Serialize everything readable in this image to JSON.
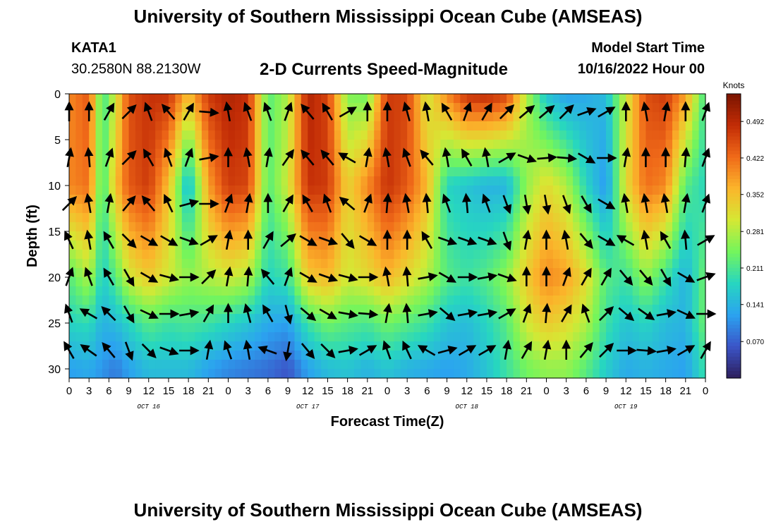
{
  "header": {
    "title": "University of Southern Mississippi Ocean Cube (AMSEAS)",
    "station": "KATA1",
    "coords": "30.2580N  88.2130W",
    "subtitle": "2-D Currents Speed-Magnitude",
    "start_label": "Model Start Time",
    "start_value": "10/16/2022 Hour 00"
  },
  "footer": {
    "title": "University of Southern Mississippi Ocean Cube (AMSEAS)"
  },
  "chart_data": {
    "type": "heatmap",
    "title": "2-D Currents Speed-Magnitude",
    "xlabel": "Forecast Time(Z)",
    "ylabel": "Depth (ft)",
    "x_ticks": [
      "0",
      "3",
      "6",
      "9",
      "12",
      "15",
      "18",
      "21",
      "0",
      "3",
      "6",
      "9",
      "12",
      "15",
      "18",
      "21",
      "0",
      "3",
      "6",
      "9",
      "12",
      "15",
      "18",
      "21",
      "0",
      "3",
      "6",
      "9",
      "12",
      "15",
      "18",
      "21",
      "0"
    ],
    "date_labels": [
      "OCT 16",
      "OCT 17",
      "OCT 18",
      "OCT 19"
    ],
    "xlim_hours": [
      0,
      96
    ],
    "ylim_ft": [
      0,
      31
    ],
    "y_ticks": [
      0,
      5,
      10,
      15,
      20,
      25,
      30
    ],
    "colorbar": {
      "label": "Knots",
      "ticks": [
        "0.492",
        "0.422",
        "0.352",
        "0.281",
        "0.211",
        "0.141",
        "0.070"
      ],
      "tick_values": [
        0.492,
        0.422,
        0.352,
        0.281,
        0.211,
        0.141,
        0.07
      ],
      "range": [
        0.0,
        0.545
      ]
    },
    "colors": [
      "#2d1e5c",
      "#3b55c8",
      "#2ba3f0",
      "#27d6c0",
      "#74f55c",
      "#d5e834",
      "#fbb52b",
      "#f06a19",
      "#c22c06",
      "#7a1500"
    ],
    "speed_profiles": [
      {
        "hour": 0,
        "d0": 0.4,
        "d10": 0.4,
        "d20": 0.22,
        "d25": 0.18,
        "d30": 0.12
      },
      {
        "hour": 3,
        "d0": 0.44,
        "d10": 0.42,
        "d20": 0.28,
        "d25": 0.19,
        "d30": 0.13
      },
      {
        "hour": 5,
        "d0": 0.2,
        "d10": 0.2,
        "d20": 0.17,
        "d25": 0.14,
        "d30": 0.11
      },
      {
        "hour": 7,
        "d0": 0.3,
        "d10": 0.35,
        "d20": 0.22,
        "d25": 0.15,
        "d30": 0.09
      },
      {
        "hour": 9,
        "d0": 0.45,
        "d10": 0.44,
        "d20": 0.3,
        "d25": 0.18,
        "d30": 0.12
      },
      {
        "hour": 12,
        "d0": 0.48,
        "d10": 0.47,
        "d20": 0.34,
        "d25": 0.22,
        "d30": 0.15
      },
      {
        "hour": 15,
        "d0": 0.48,
        "d10": 0.35,
        "d20": 0.3,
        "d25": 0.2,
        "d30": 0.15
      },
      {
        "hour": 18,
        "d0": 0.35,
        "d10": 0.14,
        "d20": 0.26,
        "d25": 0.21,
        "d30": 0.15
      },
      {
        "hour": 21,
        "d0": 0.47,
        "d10": 0.38,
        "d20": 0.28,
        "d25": 0.2,
        "d30": 0.12
      },
      {
        "hour": 24,
        "d0": 0.5,
        "d10": 0.47,
        "d20": 0.3,
        "d25": 0.18,
        "d30": 0.1
      },
      {
        "hour": 27,
        "d0": 0.48,
        "d10": 0.46,
        "d20": 0.28,
        "d25": 0.16,
        "d30": 0.09
      },
      {
        "hour": 30,
        "d0": 0.22,
        "d10": 0.22,
        "d20": 0.18,
        "d25": 0.13,
        "d30": 0.08
      },
      {
        "hour": 33,
        "d0": 0.28,
        "d10": 0.3,
        "d20": 0.2,
        "d25": 0.12,
        "d30": 0.06
      },
      {
        "hour": 36,
        "d0": 0.5,
        "d10": 0.48,
        "d20": 0.34,
        "d25": 0.2,
        "d30": 0.12
      },
      {
        "hour": 39,
        "d0": 0.46,
        "d10": 0.47,
        "d20": 0.36,
        "d25": 0.24,
        "d30": 0.15
      },
      {
        "hour": 42,
        "d0": 0.25,
        "d10": 0.33,
        "d20": 0.3,
        "d25": 0.22,
        "d30": 0.16
      },
      {
        "hour": 45,
        "d0": 0.24,
        "d10": 0.4,
        "d20": 0.32,
        "d25": 0.21,
        "d30": 0.14
      },
      {
        "hour": 48,
        "d0": 0.47,
        "d10": 0.48,
        "d20": 0.36,
        "d25": 0.24,
        "d30": 0.16
      },
      {
        "hour": 51,
        "d0": 0.46,
        "d10": 0.44,
        "d20": 0.32,
        "d25": 0.22,
        "d30": 0.14
      },
      {
        "hour": 54,
        "d0": 0.3,
        "d10": 0.36,
        "d20": 0.28,
        "d25": 0.2,
        "d30": 0.13
      },
      {
        "hour": 57,
        "d0": 0.4,
        "d10": 0.18,
        "d20": 0.22,
        "d25": 0.16,
        "d30": 0.12
      },
      {
        "hour": 60,
        "d0": 0.48,
        "d10": 0.16,
        "d20": 0.2,
        "d25": 0.15,
        "d30": 0.13
      },
      {
        "hour": 63,
        "d0": 0.49,
        "d10": 0.14,
        "d20": 0.22,
        "d25": 0.18,
        "d30": 0.16
      },
      {
        "hour": 66,
        "d0": 0.46,
        "d10": 0.14,
        "d20": 0.26,
        "d25": 0.22,
        "d30": 0.2
      },
      {
        "hour": 69,
        "d0": 0.28,
        "d10": 0.26,
        "d20": 0.34,
        "d25": 0.3,
        "d30": 0.24
      },
      {
        "hour": 72,
        "d0": 0.16,
        "d10": 0.32,
        "d20": 0.4,
        "d25": 0.34,
        "d30": 0.26
      },
      {
        "hour": 75,
        "d0": 0.12,
        "d10": 0.28,
        "d20": 0.38,
        "d25": 0.32,
        "d30": 0.26
      },
      {
        "hour": 78,
        "d0": 0.13,
        "d10": 0.18,
        "d20": 0.32,
        "d25": 0.28,
        "d30": 0.22
      },
      {
        "hour": 81,
        "d0": 0.15,
        "d10": 0.11,
        "d20": 0.22,
        "d25": 0.2,
        "d30": 0.17
      },
      {
        "hour": 84,
        "d0": 0.3,
        "d10": 0.32,
        "d20": 0.2,
        "d25": 0.16,
        "d30": 0.13
      },
      {
        "hour": 87,
        "d0": 0.45,
        "d10": 0.42,
        "d20": 0.26,
        "d25": 0.18,
        "d30": 0.14
      },
      {
        "hour": 90,
        "d0": 0.47,
        "d10": 0.4,
        "d20": 0.2,
        "d25": 0.15,
        "d30": 0.13
      },
      {
        "hour": 93,
        "d0": 0.38,
        "d10": 0.22,
        "d20": 0.14,
        "d25": 0.14,
        "d30": 0.12
      },
      {
        "hour": 96,
        "d0": 0.2,
        "d10": 0.18,
        "d20": 0.24,
        "d25": 0.24,
        "d30": 0.2
      }
    ],
    "vectors": {
      "note": "direction of current arrows in compass degrees (direction toward), arrows drawn every 3 h at listed depths",
      "depths_ft": [
        2,
        7,
        12,
        16,
        20,
        24,
        28
      ],
      "directions_deg": [
        [
          0,
          10,
          45,
          335,
          20,
          340,
          330
        ],
        [
          0,
          355,
          350,
          350,
          340,
          300,
          305
        ],
        [
          30,
          20,
          10,
          330,
          330,
          315,
          320
        ],
        [
          45,
          45,
          40,
          135,
          150,
          150,
          160
        ],
        [
          340,
          330,
          320,
          120,
          120,
          115,
          135
        ],
        [
          320,
          340,
          335,
          120,
          105,
          90,
          110
        ],
        [
          30,
          20,
          75,
          110,
          90,
          80,
          90
        ],
        [
          95,
          80,
          90,
          60,
          45,
          30,
          10
        ],
        [
          350,
          0,
          20,
          10,
          10,
          0,
          340
        ],
        [
          340,
          350,
          10,
          0,
          5,
          345,
          350
        ],
        [
          340,
          10,
          0,
          30,
          320,
          330,
          290
        ],
        [
          20,
          35,
          30,
          50,
          20,
          165,
          190
        ],
        [
          320,
          320,
          330,
          120,
          120,
          130,
          140
        ],
        [
          330,
          320,
          340,
          110,
          110,
          120,
          135
        ],
        [
          60,
          300,
          310,
          140,
          105,
          100,
          80
        ],
        [
          0,
          10,
          20,
          120,
          90,
          95,
          60
        ],
        [
          0,
          350,
          5,
          0,
          350,
          10,
          340
        ],
        [
          345,
          340,
          350,
          0,
          355,
          355,
          335
        ],
        [
          350,
          320,
          355,
          330,
          80,
          80,
          300
        ],
        [
          330,
          350,
          340,
          110,
          120,
          130,
          75
        ],
        [
          20,
          330,
          355,
          110,
          90,
          80,
          60
        ],
        [
          30,
          350,
          340,
          110,
          80,
          80,
          60
        ],
        [
          45,
          60,
          160,
          160,
          110,
          60,
          10
        ],
        [
          50,
          110,
          170,
          10,
          0,
          20,
          30
        ],
        [
          50,
          85,
          170,
          0,
          0,
          5,
          10
        ],
        [
          45,
          95,
          160,
          350,
          20,
          30,
          0
        ],
        [
          70,
          120,
          150,
          140,
          30,
          340,
          40
        ],
        [
          60,
          90,
          120,
          120,
          30,
          45,
          45
        ],
        [
          0,
          10,
          350,
          300,
          140,
          130,
          90
        ],
        [
          350,
          0,
          350,
          350,
          140,
          125,
          95
        ],
        [
          10,
          0,
          350,
          330,
          150,
          80,
          80
        ],
        [
          0,
          5,
          10,
          355,
          120,
          115,
          60
        ],
        [
          20,
          20,
          20,
          60,
          70,
          90,
          30
        ]
      ]
    }
  }
}
